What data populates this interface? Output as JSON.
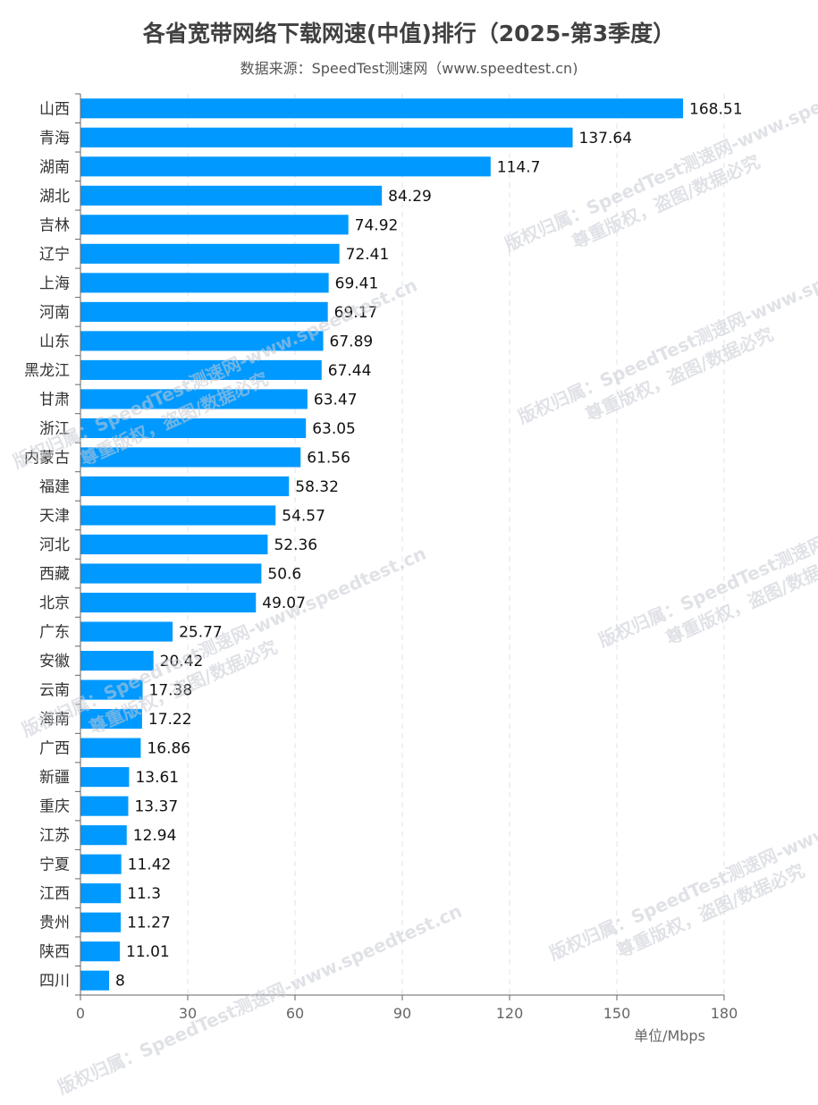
{
  "chart_data": {
    "type": "bar",
    "orientation": "horizontal",
    "title": "各省宽带网络下载网速(中值)排行（2025-第3季度）",
    "subtitle": "数据来源：SpeedTest测速网（www.speedtest.cn)",
    "categories": [
      "山西",
      "青海",
      "湖南",
      "湖北",
      "吉林",
      "辽宁",
      "上海",
      "河南",
      "山东",
      "黑龙江",
      "甘肃",
      "浙江",
      "内蒙古",
      "福建",
      "天津",
      "河北",
      "西藏",
      "北京",
      "广东",
      "安徽",
      "云南",
      "海南",
      "广西",
      "新疆",
      "重庆",
      "江苏",
      "宁夏",
      "江西",
      "贵州",
      "陕西",
      "四川"
    ],
    "values": [
      168.51,
      137.64,
      114.7,
      84.29,
      74.92,
      72.41,
      69.41,
      69.17,
      67.89,
      67.44,
      63.47,
      63.05,
      61.56,
      58.32,
      54.57,
      52.36,
      50.6,
      49.07,
      25.77,
      20.42,
      17.38,
      17.22,
      16.86,
      13.61,
      13.37,
      12.94,
      11.42,
      11.3,
      11.27,
      11.01,
      8
    ],
    "xlabel": "单位/Mbps",
    "xlim": [
      0,
      180
    ],
    "xticks": [
      0,
      30,
      60,
      90,
      120,
      150,
      180
    ],
    "grid": "vertical dashed",
    "bar_color": "#0099ff"
  },
  "watermark": {
    "line1": "版权归属：SpeedTest测速网-www.speedtest.cn",
    "line2": "尊重版权，盗图/数据必究"
  }
}
